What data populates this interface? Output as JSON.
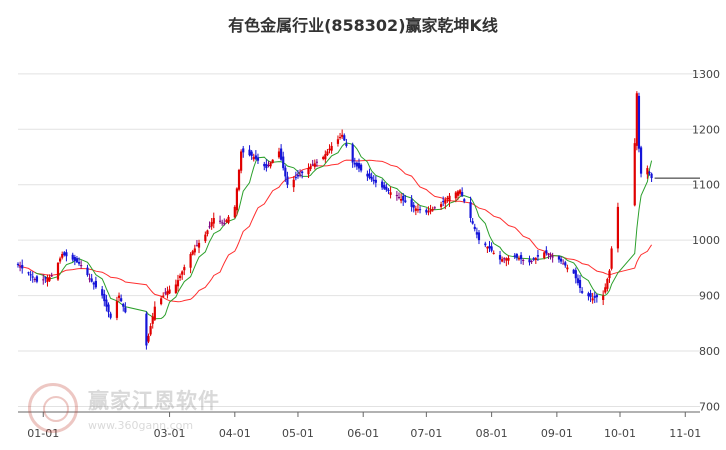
{
  "chart_data": {
    "type": "candlestick",
    "title": "有色金属行业(858302)赢家乾坤K线",
    "xlabel": "",
    "ylabel": "",
    "y_ticks": [
      1300,
      1200,
      1100,
      1000,
      900,
      800,
      700
    ],
    "ylim": [
      690,
      1325
    ],
    "x_ticks": [
      "01-01",
      "03-01",
      "04-01",
      "05-01",
      "06-01",
      "07-01",
      "08-01",
      "09-01",
      "10-01",
      "11-01"
    ],
    "grid": "horizontal",
    "last_close": 1112,
    "colors": {
      "up": "#e00000",
      "down": "#1414d8",
      "neutral": "#800080",
      "fast_ma": "#2ca02c",
      "slow_ma": "#ff3030"
    },
    "key_points": [
      [
        "2023-12-20",
        955
      ],
      [
        "2023-12-25",
        940
      ],
      [
        "2023-12-29",
        925
      ],
      [
        "2024-01-05",
        935
      ],
      [
        "2024-01-10",
        975
      ],
      [
        "2024-01-15",
        965
      ],
      [
        "2024-01-19",
        955
      ],
      [
        "2024-01-24",
        925
      ],
      [
        "2024-01-29",
        900
      ],
      [
        "2024-02-02",
        860
      ],
      [
        "2024-02-06",
        900
      ],
      [
        "2024-02-09",
        870
      ],
      [
        "2024-02-14",
        830
      ],
      [
        "2024-02-19",
        810
      ],
      [
        "2024-02-23",
        880
      ],
      [
        "2024-02-28",
        905
      ],
      [
        "2024-03-04",
        920
      ],
      [
        "2024-03-11",
        975
      ],
      [
        "2024-03-18",
        1010
      ],
      [
        "2024-03-22",
        1040
      ],
      [
        "2024-03-27",
        1030
      ],
      [
        "2024-04-01",
        1060
      ],
      [
        "2024-04-04",
        1160
      ],
      [
        "2024-04-10",
        1150
      ],
      [
        "2024-04-16",
        1130
      ],
      [
        "2024-04-22",
        1160
      ],
      [
        "2024-04-26",
        1100
      ],
      [
        "2024-05-06",
        1130
      ],
      [
        "2024-05-13",
        1150
      ],
      [
        "2024-05-17",
        1170
      ],
      [
        "2024-05-22",
        1190
      ],
      [
        "2024-05-27",
        1140
      ],
      [
        "2024-06-03",
        1115
      ],
      [
        "2024-06-10",
        1095
      ],
      [
        "2024-06-17",
        1080
      ],
      [
        "2024-06-24",
        1060
      ],
      [
        "2024-07-01",
        1050
      ],
      [
        "2024-07-08",
        1065
      ],
      [
        "2024-07-12",
        1080
      ],
      [
        "2024-07-17",
        1090
      ],
      [
        "2024-07-22",
        1040
      ],
      [
        "2024-07-26",
        1000
      ],
      [
        "2024-07-31",
        985
      ],
      [
        "2024-08-05",
        965
      ],
      [
        "2024-08-12",
        970
      ],
      [
        "2024-08-19",
        960
      ],
      [
        "2024-08-26",
        978
      ],
      [
        "2024-09-02",
        965
      ],
      [
        "2024-09-09",
        940
      ],
      [
        "2024-09-13",
        905
      ],
      [
        "2024-09-18",
        895
      ],
      [
        "2024-09-23",
        900
      ],
      [
        "2024-09-26",
        945
      ],
      [
        "2024-09-27",
        985
      ],
      [
        "2024-09-30",
        1060
      ],
      [
        "2024-10-08",
        1175
      ],
      [
        "2024-10-09",
        1265
      ],
      [
        "2024-10-10",
        1165
      ],
      [
        "2024-10-11",
        1120
      ],
      [
        "2024-10-14",
        1130
      ],
      [
        "2024-10-16",
        1112
      ]
    ]
  }
}
